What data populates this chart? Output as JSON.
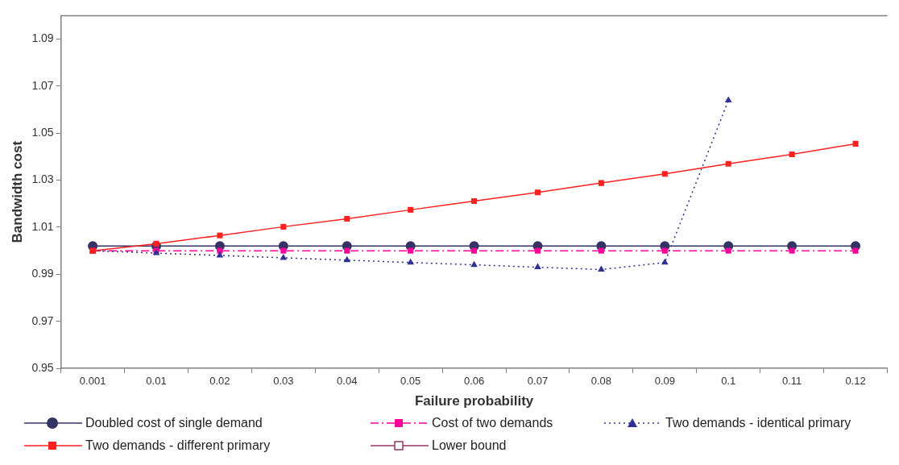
{
  "chart_data": {
    "type": "line",
    "xlabel": "Failure probability",
    "ylabel": "Bandwidth cost",
    "categories": [
      "0.001",
      "0.01",
      "0.02",
      "0.03",
      "0.04",
      "0.05",
      "0.06",
      "0.07",
      "0.08",
      "0.09",
      "0.1",
      "0.11",
      "0.12"
    ],
    "series": [
      {
        "name": "Doubled cost of single demand",
        "color": "#333366",
        "marker": "circle",
        "line_style": "solid",
        "values": [
          1.002,
          1.002,
          1.002,
          1.002,
          1.002,
          1.002,
          1.002,
          1.002,
          1.002,
          1.002,
          1.002,
          1.002,
          1.002
        ]
      },
      {
        "name": "Cost of two demands",
        "color": "#ff0099",
        "marker": "square",
        "line_style": "dashed",
        "values": [
          1.0,
          1.0,
          1.0,
          1.0,
          1.0,
          1.0,
          1.0,
          1.0,
          1.0,
          1.0,
          1.0,
          1.0,
          1.0
        ]
      },
      {
        "name": "Two demands - identical primary",
        "color": "#2e3192",
        "marker": "triangle",
        "line_style": "dotted",
        "values": [
          1.0,
          0.999,
          0.998,
          0.997,
          0.996,
          0.995,
          0.994,
          0.993,
          0.992,
          0.995,
          1.064,
          null,
          null
        ]
      },
      {
        "name": "Two demands - different primary",
        "color": "#ff2020",
        "marker": "square",
        "line_style": "solid",
        "values": [
          1.0,
          1.003,
          1.0065,
          1.0102,
          1.0136,
          1.0174,
          1.0211,
          1.0248,
          1.0288,
          1.0327,
          1.037,
          1.041,
          1.0455
        ]
      },
      {
        "name": "Lower bound",
        "color": "#993366",
        "marker": "square_open",
        "line_style": "solid",
        "values": [
          null,
          null,
          null,
          null,
          null,
          null,
          null,
          null,
          null,
          null,
          null,
          null,
          null
        ]
      }
    ],
    "ylim": [
      0.95,
      1.1
    ],
    "yticks": [
      0.95,
      0.97,
      0.99,
      1.01,
      1.03,
      1.05,
      1.07,
      1.09
    ],
    "grid": false,
    "legend": "bottom"
  }
}
